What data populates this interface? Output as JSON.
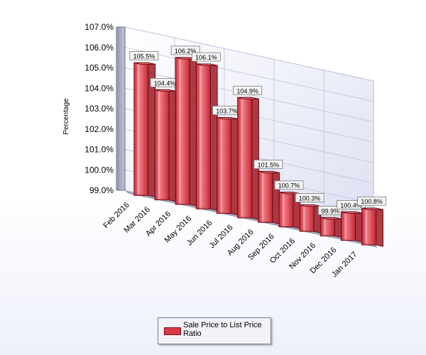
{
  "chart_data": {
    "type": "bar",
    "ylabel": "Percentage",
    "ylim": [
      99.0,
      107.0
    ],
    "y_ticks": [
      "99.0%",
      "100.0%",
      "101.0%",
      "102.0%",
      "103.0%",
      "104.0%",
      "105.0%",
      "106.0%",
      "107.0%"
    ],
    "categories": [
      "Feb 2016",
      "Mar 2016",
      "Apr 2016",
      "May 2016",
      "Jun 2016",
      "Jul 2016",
      "Aug 2016",
      "Sep 2016",
      "Oct 2016",
      "Nov 2016",
      "Dec 2016",
      "Jan 2017"
    ],
    "series": [
      {
        "name": "Sale Price to List Price Ratio",
        "values": [
          105.5,
          104.4,
          106.2,
          106.1,
          103.7,
          104.9,
          101.5,
          100.7,
          100.3,
          99.9,
          100.4,
          100.8
        ],
        "labels": [
          "105.5%",
          "104.4%",
          "106.2%",
          "106.1%",
          "103.7%",
          "104.9%",
          "101.5%",
          "100.7%",
          "100.3%",
          "99.9%",
          "100.4%",
          "100.8%"
        ]
      }
    ],
    "bar_color": "#d93a46",
    "grid": true,
    "legend_position": "bottom",
    "style": "3d"
  }
}
